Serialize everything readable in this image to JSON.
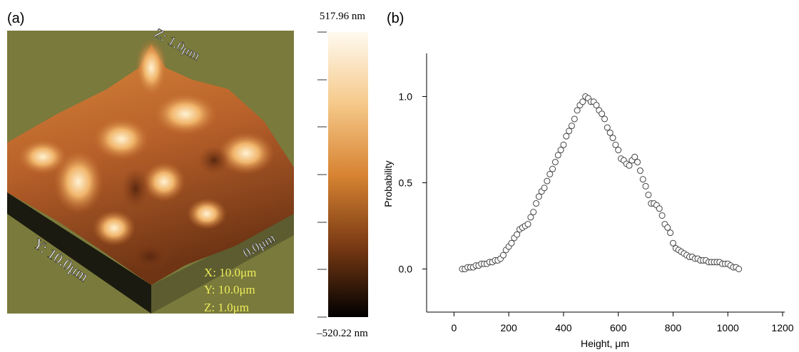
{
  "panel_a": {
    "label": "(a)",
    "z_axis_label": "Z: 1.0μm",
    "y_axis_label": "Y: 10.0μm",
    "x_axis_label": "0.0μm",
    "info": [
      "X: 10.0μm",
      "Y: 10.0μm",
      "Z: 1.0μm"
    ],
    "colorbar": {
      "max_label": "517.96 nm",
      "min_label": "–520.22 nm"
    }
  },
  "chart_data": {
    "type": "scatter",
    "panel_label": "(b)",
    "x_label": "Height, μm",
    "y_label": "Probability",
    "xlim": [
      -100,
      1200
    ],
    "ylim": [
      -0.25,
      1.25
    ],
    "xticks": [
      0,
      200,
      400,
      600,
      800,
      1000,
      1200
    ],
    "yticks": [
      {
        "value": 0,
        "label": "0.0"
      },
      0.5,
      {
        "value": 1,
        "label": "1.0"
      }
    ],
    "marker_edge_color": "#444444",
    "marker_face_color": "#ffffff",
    "x": [
      30,
      40,
      50,
      60,
      70,
      80,
      90,
      100,
      110,
      120,
      130,
      140,
      150,
      160,
      170,
      180,
      190,
      200,
      210,
      220,
      230,
      240,
      250,
      260,
      270,
      280,
      290,
      300,
      310,
      320,
      330,
      340,
      350,
      360,
      370,
      380,
      390,
      400,
      410,
      420,
      430,
      440,
      450,
      460,
      470,
      480,
      490,
      500,
      510,
      520,
      530,
      540,
      550,
      560,
      570,
      580,
      590,
      600,
      610,
      620,
      630,
      640,
      650,
      660,
      670,
      680,
      690,
      700,
      710,
      720,
      730,
      740,
      750,
      760,
      770,
      780,
      790,
      800,
      810,
      820,
      830,
      840,
      850,
      860,
      870,
      880,
      890,
      900,
      910,
      920,
      930,
      940,
      950,
      960,
      970,
      980,
      990,
      1000,
      1010,
      1020,
      1030,
      1040
    ],
    "values": [
      0.0,
      0.0,
      0.01,
      0.01,
      0.01,
      0.02,
      0.02,
      0.03,
      0.03,
      0.03,
      0.04,
      0.04,
      0.05,
      0.05,
      0.06,
      0.08,
      0.11,
      0.13,
      0.15,
      0.18,
      0.2,
      0.23,
      0.24,
      0.25,
      0.26,
      0.3,
      0.33,
      0.38,
      0.42,
      0.45,
      0.47,
      0.51,
      0.55,
      0.58,
      0.62,
      0.66,
      0.69,
      0.72,
      0.77,
      0.8,
      0.83,
      0.87,
      0.92,
      0.95,
      0.97,
      1.0,
      0.99,
      0.97,
      0.97,
      0.95,
      0.92,
      0.9,
      0.87,
      0.82,
      0.79,
      0.76,
      0.72,
      0.69,
      0.64,
      0.63,
      0.61,
      0.6,
      0.63,
      0.65,
      0.62,
      0.57,
      0.52,
      0.48,
      0.43,
      0.38,
      0.38,
      0.37,
      0.35,
      0.31,
      0.26,
      0.24,
      0.21,
      0.15,
      0.12,
      0.11,
      0.1,
      0.09,
      0.08,
      0.07,
      0.07,
      0.06,
      0.06,
      0.05,
      0.05,
      0.05,
      0.04,
      0.04,
      0.04,
      0.04,
      0.04,
      0.03,
      0.03,
      0.03,
      0.02,
      0.01,
      0.01,
      0.0
    ]
  }
}
